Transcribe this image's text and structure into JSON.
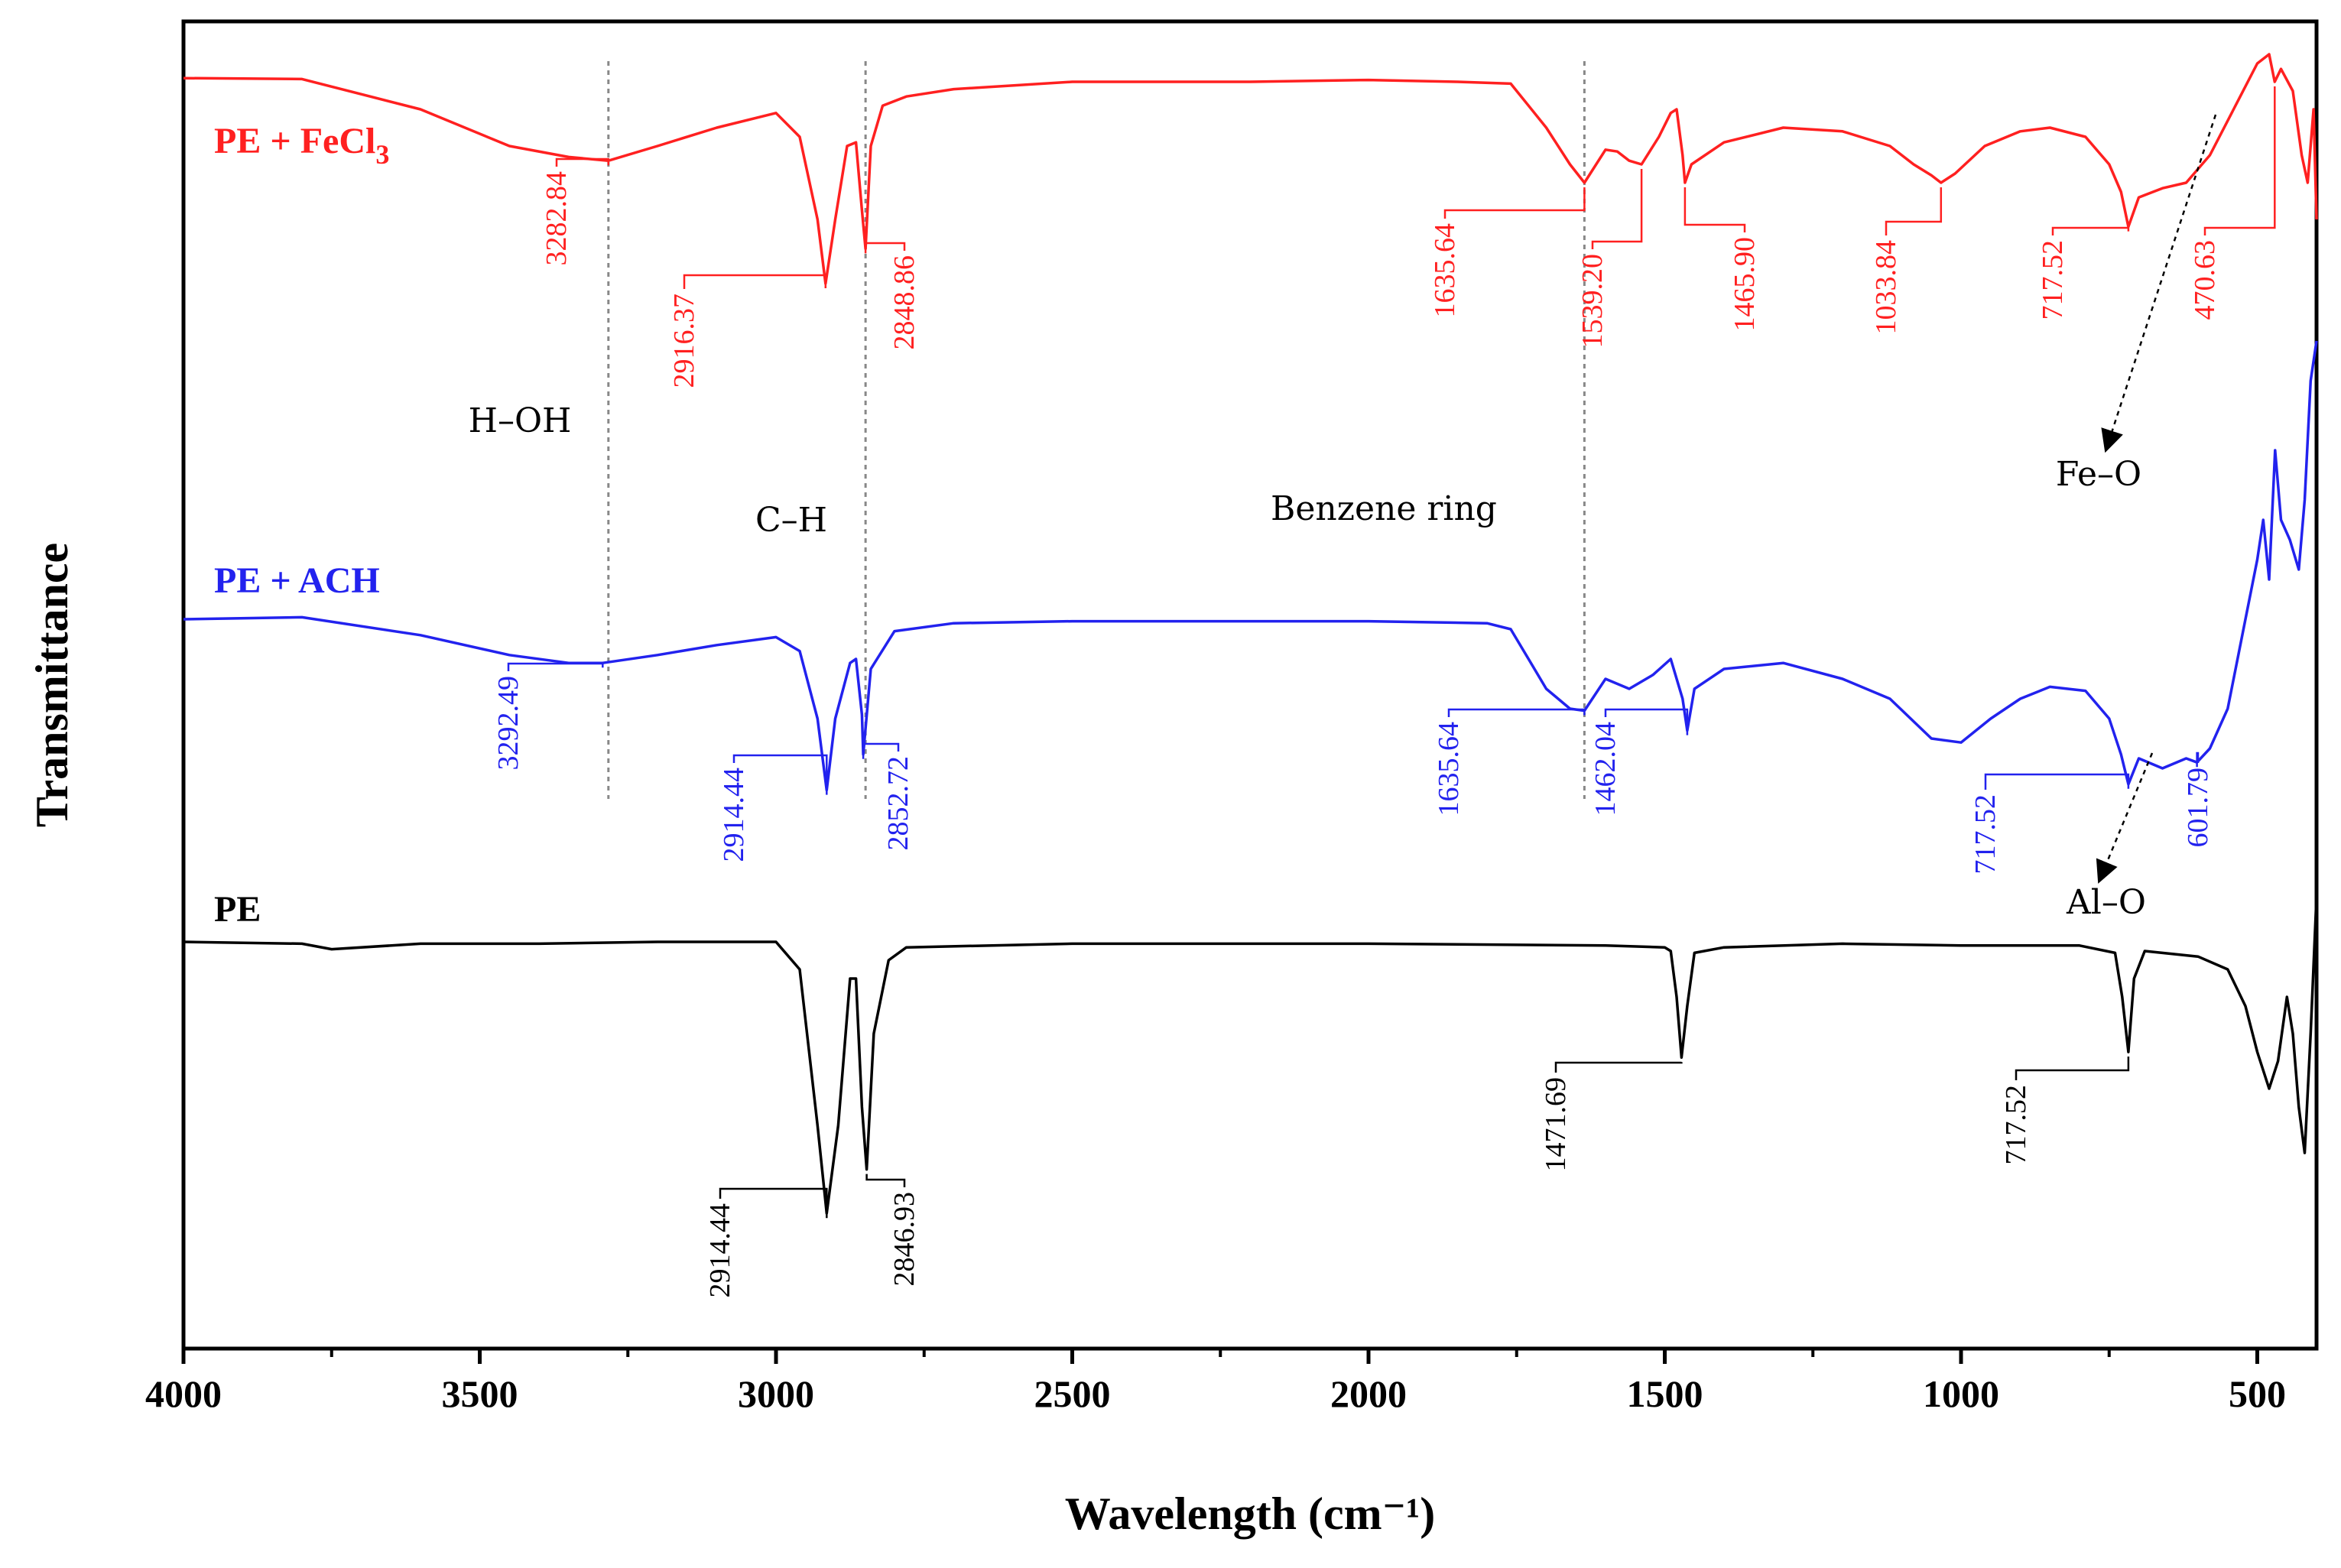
{
  "chart_data": {
    "type": "line",
    "title": "",
    "xlabel": "Wavelength (cm⁻¹)",
    "ylabel": "Transmittance",
    "xlim": [
      4000,
      400
    ],
    "x_ticks": [
      4000,
      3500,
      3000,
      2500,
      2000,
      1500,
      1000,
      500
    ],
    "x_tick_labels": [
      "4000",
      "3500",
      "3000",
      "2500",
      "2000",
      "1500",
      "1000",
      "500"
    ],
    "y_ticks_shown": false,
    "grid": false,
    "series": [
      {
        "name": "PE + FeCl₃",
        "label_main": "PE + FeCl",
        "label_sub": "3",
        "color": "#ff2020",
        "points": [
          [
            4000,
            0.3
          ],
          [
            3800,
            0.35
          ],
          [
            3600,
            2.0
          ],
          [
            3450,
            4.0
          ],
          [
            3350,
            4.6
          ],
          [
            3282.84,
            4.8
          ],
          [
            3200,
            4.0
          ],
          [
            3100,
            3.0
          ],
          [
            3000,
            2.2
          ],
          [
            2960,
            3.5
          ],
          [
            2930,
            8.0
          ],
          [
            2916.37,
            11.5
          ],
          [
            2900,
            8.0
          ],
          [
            2880,
            4.0
          ],
          [
            2865,
            3.8
          ],
          [
            2855,
            7.5
          ],
          [
            2848.86,
            9.6
          ],
          [
            2840,
            4.0
          ],
          [
            2820,
            1.8
          ],
          [
            2780,
            1.3
          ],
          [
            2700,
            0.9
          ],
          [
            2500,
            0.5
          ],
          [
            2200,
            0.5
          ],
          [
            2000,
            0.4
          ],
          [
            1850,
            0.5
          ],
          [
            1760,
            0.6
          ],
          [
            1730,
            1.8
          ],
          [
            1700,
            3.0
          ],
          [
            1660,
            5.0
          ],
          [
            1635.64,
            6.0
          ],
          [
            1600,
            4.2
          ],
          [
            1580,
            4.3
          ],
          [
            1560,
            4.8
          ],
          [
            1539.2,
            5.0
          ],
          [
            1510,
            3.5
          ],
          [
            1490,
            2.2
          ],
          [
            1480,
            2.0
          ],
          [
            1470,
            4.5
          ],
          [
            1465.9,
            6.0
          ],
          [
            1455,
            5.0
          ],
          [
            1400,
            3.8
          ],
          [
            1300,
            3.0
          ],
          [
            1200,
            3.2
          ],
          [
            1120,
            4.0
          ],
          [
            1080,
            5.0
          ],
          [
            1050,
            5.6
          ],
          [
            1033.84,
            6.0
          ],
          [
            1010,
            5.5
          ],
          [
            960,
            4.0
          ],
          [
            900,
            3.2
          ],
          [
            850,
            3.0
          ],
          [
            790,
            3.5
          ],
          [
            750,
            5.0
          ],
          [
            730,
            6.5
          ],
          [
            717.52,
            8.4
          ],
          [
            700,
            6.8
          ],
          [
            660,
            6.3
          ],
          [
            620,
            6.0
          ],
          [
            580,
            4.5
          ],
          [
            540,
            2.0
          ],
          [
            500,
            -0.5
          ],
          [
            480,
            -1.0
          ],
          [
            470.63,
            0.5
          ],
          [
            460,
            -0.2
          ],
          [
            440,
            1.0
          ],
          [
            425,
            4.5
          ],
          [
            415,
            6.0
          ],
          [
            405,
            2.0
          ],
          [
            400,
            8.0
          ]
        ],
        "peaks": [
          "3282.84",
          "2916.37",
          "2848.86",
          "1635.64",
          "1539.20",
          "1465.90",
          "1033.84",
          "717.52",
          "470.63"
        ]
      },
      {
        "name": "PE + ACH",
        "color": "#2222ee",
        "points": [
          [
            4000,
            0.0
          ],
          [
            3800,
            -0.1
          ],
          [
            3600,
            0.8
          ],
          [
            3450,
            1.8
          ],
          [
            3350,
            2.2
          ],
          [
            3292.49,
            2.2
          ],
          [
            3200,
            1.8
          ],
          [
            3100,
            1.3
          ],
          [
            3000,
            0.9
          ],
          [
            2960,
            1.6
          ],
          [
            2930,
            5.0
          ],
          [
            2914.44,
            8.6
          ],
          [
            2900,
            5.0
          ],
          [
            2875,
            2.2
          ],
          [
            2865,
            2.0
          ],
          [
            2855,
            4.8
          ],
          [
            2852.72,
            6.8
          ],
          [
            2840,
            2.5
          ],
          [
            2800,
            0.6
          ],
          [
            2700,
            0.2
          ],
          [
            2500,
            0.1
          ],
          [
            2200,
            0.1
          ],
          [
            2000,
            0.1
          ],
          [
            1800,
            0.2
          ],
          [
            1760,
            0.5
          ],
          [
            1730,
            2.0
          ],
          [
            1700,
            3.5
          ],
          [
            1660,
            4.5
          ],
          [
            1635.64,
            4.6
          ],
          [
            1600,
            3.0
          ],
          [
            1560,
            3.5
          ],
          [
            1520,
            2.8
          ],
          [
            1490,
            2.0
          ],
          [
            1470,
            4.0
          ],
          [
            1462.04,
            5.6
          ],
          [
            1450,
            3.5
          ],
          [
            1400,
            2.5
          ],
          [
            1300,
            2.2
          ],
          [
            1200,
            3.0
          ],
          [
            1120,
            4.0
          ],
          [
            1050,
            6.0
          ],
          [
            1000,
            6.2
          ],
          [
            950,
            5.0
          ],
          [
            900,
            4.0
          ],
          [
            850,
            3.4
          ],
          [
            790,
            3.6
          ],
          [
            750,
            5.0
          ],
          [
            730,
            6.8
          ],
          [
            717.52,
            8.3
          ],
          [
            700,
            7.0
          ],
          [
            660,
            7.5
          ],
          [
            620,
            7.0
          ],
          [
            601.79,
            7.2
          ],
          [
            580,
            6.5
          ],
          [
            550,
            4.5
          ],
          [
            520,
            0.0
          ],
          [
            500,
            -3.0
          ],
          [
            490,
            -5.0
          ],
          [
            480,
            -2.0
          ],
          [
            470,
            -8.5
          ],
          [
            460,
            -5.0
          ],
          [
            445,
            -4.0
          ],
          [
            430,
            -2.5
          ],
          [
            420,
            -6.0
          ],
          [
            410,
            -12.0
          ],
          [
            400,
            -14.0
          ]
        ],
        "peaks": [
          "3292.49",
          "2914.44",
          "2852.72",
          "1635.64",
          "1462.04",
          "717.52",
          "601.79"
        ]
      },
      {
        "name": "PE",
        "color": "#000000",
        "points": [
          [
            4000,
            0.0
          ],
          [
            3800,
            0.1
          ],
          [
            3750,
            0.4
          ],
          [
            3600,
            0.1
          ],
          [
            3400,
            0.1
          ],
          [
            3200,
            0.0
          ],
          [
            3000,
            0.0
          ],
          [
            2960,
            1.5
          ],
          [
            2930,
            10.0
          ],
          [
            2914.44,
            14.8
          ],
          [
            2895,
            10.0
          ],
          [
            2875,
            2.0
          ],
          [
            2865,
            2.0
          ],
          [
            2855,
            9.0
          ],
          [
            2846.93,
            12.4
          ],
          [
            2835,
            5.0
          ],
          [
            2810,
            1.0
          ],
          [
            2780,
            0.3
          ],
          [
            2500,
            0.1
          ],
          [
            2000,
            0.1
          ],
          [
            1600,
            0.2
          ],
          [
            1500,
            0.3
          ],
          [
            1490,
            0.5
          ],
          [
            1480,
            3.0
          ],
          [
            1471.69,
            6.3
          ],
          [
            1462,
            3.5
          ],
          [
            1450,
            0.6
          ],
          [
            1400,
            0.3
          ],
          [
            1200,
            0.1
          ],
          [
            1000,
            0.2
          ],
          [
            800,
            0.2
          ],
          [
            740,
            0.6
          ],
          [
            728,
            3.0
          ],
          [
            717.52,
            6.0
          ],
          [
            708,
            2.0
          ],
          [
            690,
            0.5
          ],
          [
            600,
            0.8
          ],
          [
            550,
            1.5
          ],
          [
            520,
            3.5
          ],
          [
            500,
            6.0
          ],
          [
            480,
            8.0
          ],
          [
            465,
            6.5
          ],
          [
            450,
            3.0
          ],
          [
            440,
            5.0
          ],
          [
            430,
            9.0
          ],
          [
            420,
            11.5
          ],
          [
            410,
            5.0
          ],
          [
            400,
            -2.5
          ]
        ],
        "peaks": [
          "2914.44",
          "2846.93",
          "1471.69",
          "717.52"
        ]
      }
    ],
    "annotations": [
      {
        "text": "H–OH"
      },
      {
        "text": "C–H"
      },
      {
        "text": "Benzene ring"
      },
      {
        "text": "Fe–O"
      },
      {
        "text": "Al–O"
      }
    ],
    "reference_lines": [
      3282.84,
      2848.86,
      1635.64
    ]
  }
}
